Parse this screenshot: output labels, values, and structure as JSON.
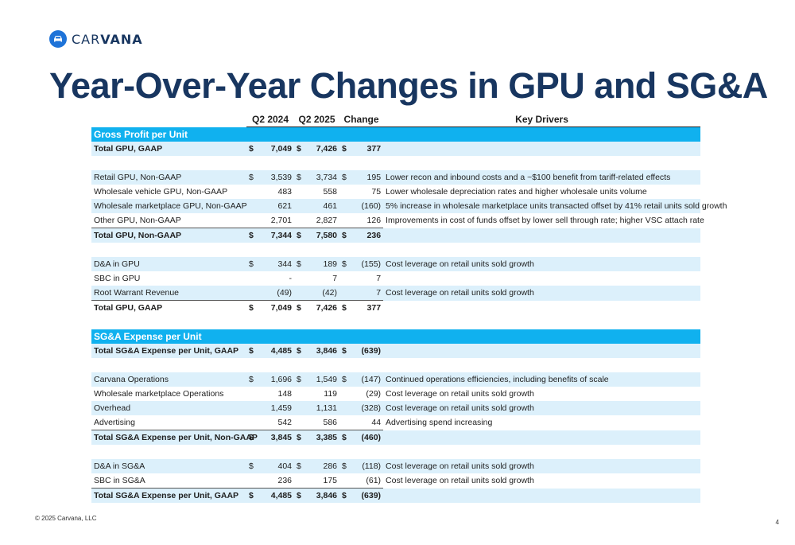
{
  "brand": {
    "name_part1": "CAR",
    "name_part2": "VANA",
    "accent": "#1e73d8",
    "navy": "#183660",
    "section_color": "#10b1ef",
    "shade_color": "#dcf0fb"
  },
  "title": "Year-Over-Year Changes in GPU and SG&A",
  "headers": {
    "q2_2024": "Q2 2024",
    "q2_2025": "Q2 2025",
    "change": "Change",
    "drivers": "Key Drivers"
  },
  "rows": [
    {
      "type": "section",
      "label": "Gross Profit per Unit"
    },
    {
      "type": "total",
      "shade": true,
      "label": "Total GPU, GAAP",
      "c1": "$",
      "v1": "7,049",
      "c2": "$",
      "v2": "7,426",
      "c3": "$",
      "v3": "377",
      "driver": ""
    },
    {
      "type": "spacer"
    },
    {
      "type": "row",
      "shade": true,
      "label": "Retail GPU, Non-GAAP",
      "c1": "$",
      "v1": "3,539",
      "c2": "$",
      "v2": "3,734",
      "c3": "$",
      "v3": "195",
      "driver": "Lower recon and inbound costs and a ~$100 benefit from tariff-related effects"
    },
    {
      "type": "row",
      "label": "Wholesale vehicle GPU, Non-GAAP",
      "c1": "",
      "v1": "483",
      "c2": "",
      "v2": "558",
      "c3": "",
      "v3": "75",
      "driver": "Lower wholesale depreciation rates and higher wholesale units volume"
    },
    {
      "type": "row",
      "shade": true,
      "tall": true,
      "label": "Wholesale marketplace GPU, Non-GAAP",
      "c1": "",
      "v1": "621",
      "c2": "",
      "v2": "461",
      "c3": "",
      "v3": "(160)",
      "driver": "5% increase in wholesale marketplace units transacted offset by 41% retail units sold growth"
    },
    {
      "type": "row",
      "label": "Other GPU, Non-GAAP",
      "c1": "",
      "v1": "2,701",
      "c2": "",
      "v2": "2,827",
      "c3": "",
      "v3": "126",
      "driver": "Improvements in cost of funds offset by lower sell through rate; higher VSC attach rate"
    },
    {
      "type": "total",
      "shade": true,
      "topline": true,
      "label": "Total GPU, Non-GAAP",
      "c1": "$",
      "v1": "7,344",
      "c2": "$",
      "v2": "7,580",
      "c3": "$",
      "v3": "236",
      "driver": ""
    },
    {
      "type": "spacer"
    },
    {
      "type": "row",
      "shade": true,
      "label": "D&A in GPU",
      "c1": "$",
      "v1": "344",
      "c2": "$",
      "v2": "189",
      "c3": "$",
      "v3": "(155)",
      "driver": "Cost leverage on retail units sold growth"
    },
    {
      "type": "row",
      "label": "SBC in GPU",
      "c1": "",
      "v1": "-",
      "c2": "",
      "v2": "7",
      "c3": "",
      "v3": "7",
      "driver": ""
    },
    {
      "type": "row",
      "shade": true,
      "label": "Root Warrant Revenue",
      "c1": "",
      "v1": "(49)",
      "c2": "",
      "v2": "(42)",
      "c3": "",
      "v3": "7",
      "driver": "Cost leverage on retail units sold growth"
    },
    {
      "type": "total",
      "topline": true,
      "label": "Total GPU, GAAP",
      "c1": "$",
      "v1": "7,049",
      "c2": "$",
      "v2": "7,426",
      "c3": "$",
      "v3": "377",
      "driver": ""
    },
    {
      "type": "spacer"
    },
    {
      "type": "section",
      "label": "SG&A Expense per Unit"
    },
    {
      "type": "total",
      "shade": true,
      "label": "Total SG&A Expense per Unit, GAAP",
      "c1": "$",
      "v1": "4,485",
      "c2": "$",
      "v2": "3,846",
      "c3": "$",
      "v3": "(639)",
      "driver": ""
    },
    {
      "type": "spacer"
    },
    {
      "type": "row",
      "shade": true,
      "label": "Carvana Operations",
      "c1": "$",
      "v1": "1,696",
      "c2": "$",
      "v2": "1,549",
      "c3": "$",
      "v3": "(147)",
      "driver": "Continued operations efficiencies, including benefits of scale"
    },
    {
      "type": "row",
      "label": "Wholesale marketplace Operations",
      "c1": "",
      "v1": "148",
      "c2": "",
      "v2": "119",
      "c3": "",
      "v3": "(29)",
      "driver": "Cost leverage on retail units sold growth"
    },
    {
      "type": "row",
      "shade": true,
      "label": "Overhead",
      "c1": "",
      "v1": "1,459",
      "c2": "",
      "v2": "1,131",
      "c3": "",
      "v3": "(328)",
      "driver": "Cost leverage on retail units sold growth"
    },
    {
      "type": "row",
      "label": "Advertising",
      "c1": "",
      "v1": "542",
      "c2": "",
      "v2": "586",
      "c3": "",
      "v3": "44",
      "driver": "Advertising spend increasing"
    },
    {
      "type": "total",
      "shade": true,
      "topline": true,
      "label": "Total SG&A Expense per Unit, Non-GAAP",
      "c1": "$",
      "v1": "3,845",
      "c2": "$",
      "v2": "3,385",
      "c3": "$",
      "v3": "(460)",
      "driver": ""
    },
    {
      "type": "spacer"
    },
    {
      "type": "row",
      "shade": true,
      "label": "D&A in SG&A",
      "c1": "$",
      "v1": "404",
      "c2": "$",
      "v2": "286",
      "c3": "$",
      "v3": "(118)",
      "driver": "Cost leverage on retail units sold growth"
    },
    {
      "type": "row",
      "label": "SBC in SG&A",
      "c1": "",
      "v1": "236",
      "c2": "",
      "v2": "175",
      "c3": "",
      "v3": "(61)",
      "driver": "Cost leverage on retail units sold growth"
    },
    {
      "type": "total",
      "shade": true,
      "topline": true,
      "label": "Total SG&A Expense per Unit, GAAP",
      "c1": "$",
      "v1": "4,485",
      "c2": "$",
      "v2": "3,846",
      "c3": "$",
      "v3": "(639)",
      "driver": ""
    }
  ],
  "footer": "© 2025 Carvana, LLC",
  "page_number": "4"
}
